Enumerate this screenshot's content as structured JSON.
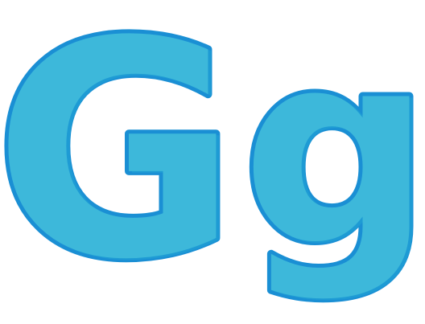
{
  "letters": {
    "uppercase": "G",
    "lowercase": "g"
  },
  "colors": {
    "fill": "#3db8da",
    "outline": "#1a8fd4",
    "shadow": "#1e9bd4",
    "background": "#ffffff"
  }
}
